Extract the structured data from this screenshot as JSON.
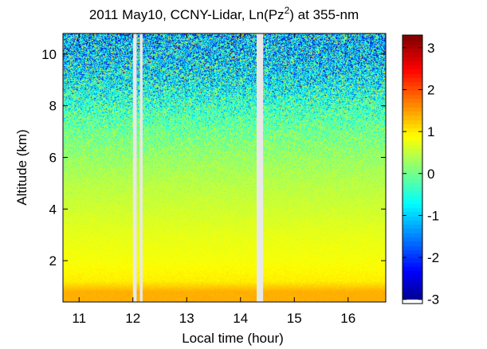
{
  "chart_data": {
    "type": "heatmap",
    "title": {
      "main": "2011 May10, CCNY-Lidar, Ln(Pz",
      "superscript": "2",
      "suffix": ") at 355-nm"
    },
    "xlabel": "Local time (hour)",
    "ylabel": "Altitude (km)",
    "xlim": [
      10.7,
      16.7
    ],
    "ylim": [
      0.4,
      10.8
    ],
    "xticks": [
      "11",
      "12",
      "13",
      "14",
      "15",
      "16"
    ],
    "xtick_values": [
      11,
      12,
      13,
      14,
      15,
      16
    ],
    "yticks": [
      "2",
      "4",
      "6",
      "8",
      "10"
    ],
    "ytick_values": [
      2,
      4,
      6,
      8,
      10
    ],
    "colorbar": {
      "range": [
        -3.1,
        3.3
      ],
      "ticks": [
        "-3",
        "-2",
        "-1",
        "0",
        "1",
        "2",
        "3"
      ],
      "tick_values": [
        -3,
        -2,
        -1,
        0,
        1,
        2,
        3
      ],
      "colormap": "jet"
    },
    "data_gaps_hours": [
      [
        12.0,
        12.07
      ],
      [
        12.13,
        12.18
      ],
      [
        14.3,
        14.42
      ]
    ],
    "profile": {
      "altitude_km": [
        0.4,
        0.8,
        1.2,
        2.0,
        3.0,
        4.0,
        5.0,
        6.0,
        7.0,
        8.0,
        9.0,
        10.0,
        10.8
      ],
      "mean_ln_pz2": [
        1.4,
        1.4,
        1.0,
        0.85,
        0.75,
        0.6,
        0.45,
        0.25,
        0.0,
        -0.35,
        -0.75,
        -1.0,
        -1.1
      ],
      "noise_std": [
        0.03,
        0.03,
        0.05,
        0.05,
        0.06,
        0.08,
        0.12,
        0.2,
        0.35,
        0.6,
        0.85,
        1.05,
        1.15
      ]
    }
  }
}
